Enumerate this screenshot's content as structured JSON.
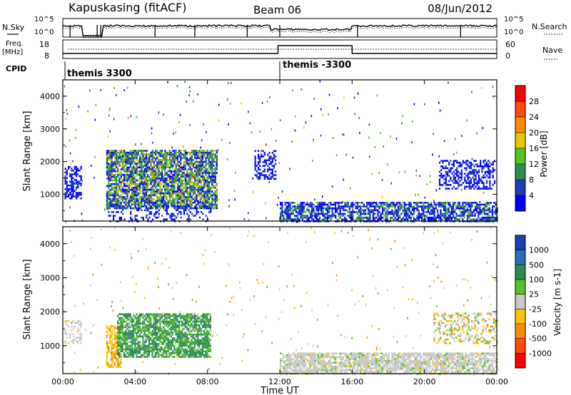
{
  "header": {
    "station": "Kapuskasing (fitACF)",
    "beam": "Beam 06",
    "date": "08/Jun/2012"
  },
  "top_panels": {
    "nsky_label": "N.Sky",
    "nsearch_label": "N.Search",
    "freq_label": "Freq.",
    "freq_unit": "[MHz]",
    "nave_label": "Nave",
    "cpid_label": "CPID",
    "noise_ticks": [
      "10^5",
      "10^0"
    ],
    "freq_ticks": [
      "18",
      "8"
    ],
    "nave_ticks": [
      "60",
      "0"
    ],
    "cpid_segments": [
      {
        "label": "themis 3300",
        "start_hour": 0.0
      },
      {
        "label": "themis -3300",
        "start_hour": 12.0
      }
    ]
  },
  "x_axis": {
    "label": "Time UT",
    "ticks": [
      "00:00",
      "04:00",
      "08:00",
      "12:00",
      "16:00",
      "20:00",
      "00:00"
    ]
  },
  "power_panel": {
    "ylabel": "Slant Range [km]",
    "yticks": [
      "1000",
      "2000",
      "3000",
      "4000"
    ],
    "colorbar_label": "Power [dB]",
    "colorbar_ticks": [
      "4",
      "8",
      "12",
      "16",
      "20",
      "24",
      "28"
    ],
    "colors": [
      "#0000ff",
      "#1c3fb0",
      "#2e8c4e",
      "#55c228",
      "#e6c800",
      "#ff8c00",
      "#ff4a00",
      "#ff0000"
    ]
  },
  "velocity_panel": {
    "ylabel": "Slant Range [km]",
    "yticks": [
      "1000",
      "2000",
      "3000",
      "4000"
    ],
    "colorbar_label": "Velocity [m s-1]",
    "colorbar_ticks": [
      "1000",
      "500",
      "100",
      "25",
      "-25",
      "-100",
      "-500",
      "-1000"
    ],
    "colors": [
      "#1c3fb0",
      "#2a6fb5",
      "#2e8c4e",
      "#55c228",
      "#c8c8c8",
      "#ffc400",
      "#ff8c00",
      "#ff4a00",
      "#ff0000"
    ]
  },
  "chart_data": {
    "type": "heatmap",
    "x_range_hours": [
      0,
      24
    ],
    "y_range_km": [
      180,
      4500
    ],
    "power_regions": [
      {
        "t0": 0.1,
        "t1": 1.0,
        "r0": 900,
        "r1": 1900,
        "level": "low",
        "density": 0.55
      },
      {
        "t0": 2.4,
        "t1": 8.5,
        "r0": 600,
        "r1": 2400,
        "level": "mixed",
        "density": 0.8
      },
      {
        "t0": 2.5,
        "t1": 8.2,
        "r0": 200,
        "r1": 700,
        "level": "low",
        "density": 0.25
      },
      {
        "t0": 10.6,
        "t1": 11.8,
        "r0": 1500,
        "r1": 2400,
        "level": "low",
        "density": 0.5
      },
      {
        "t0": 12.0,
        "t1": 24.0,
        "r0": 200,
        "r1": 800,
        "level": "lowmid",
        "density": 0.7
      },
      {
        "t0": 20.8,
        "t1": 23.9,
        "r0": 1200,
        "r1": 2100,
        "level": "low",
        "density": 0.45
      }
    ],
    "velocity_regions": [
      {
        "t0": 0.1,
        "t1": 1.0,
        "r0": 1100,
        "r1": 1800,
        "level": "near-zero",
        "density": 0.45
      },
      {
        "t0": 2.4,
        "t1": 3.2,
        "r0": 400,
        "r1": 1600,
        "level": "negative",
        "density": 0.7
      },
      {
        "t0": 3.0,
        "t1": 8.2,
        "r0": 700,
        "r1": 2000,
        "level": "positive",
        "density": 0.8
      },
      {
        "t0": 12.0,
        "t1": 24.0,
        "r0": 200,
        "r1": 800,
        "level": "near-zero",
        "density": 0.8
      },
      {
        "t0": 20.5,
        "t1": 24.0,
        "r0": 1100,
        "r1": 2000,
        "level": "mixed",
        "density": 0.4
      }
    ]
  }
}
